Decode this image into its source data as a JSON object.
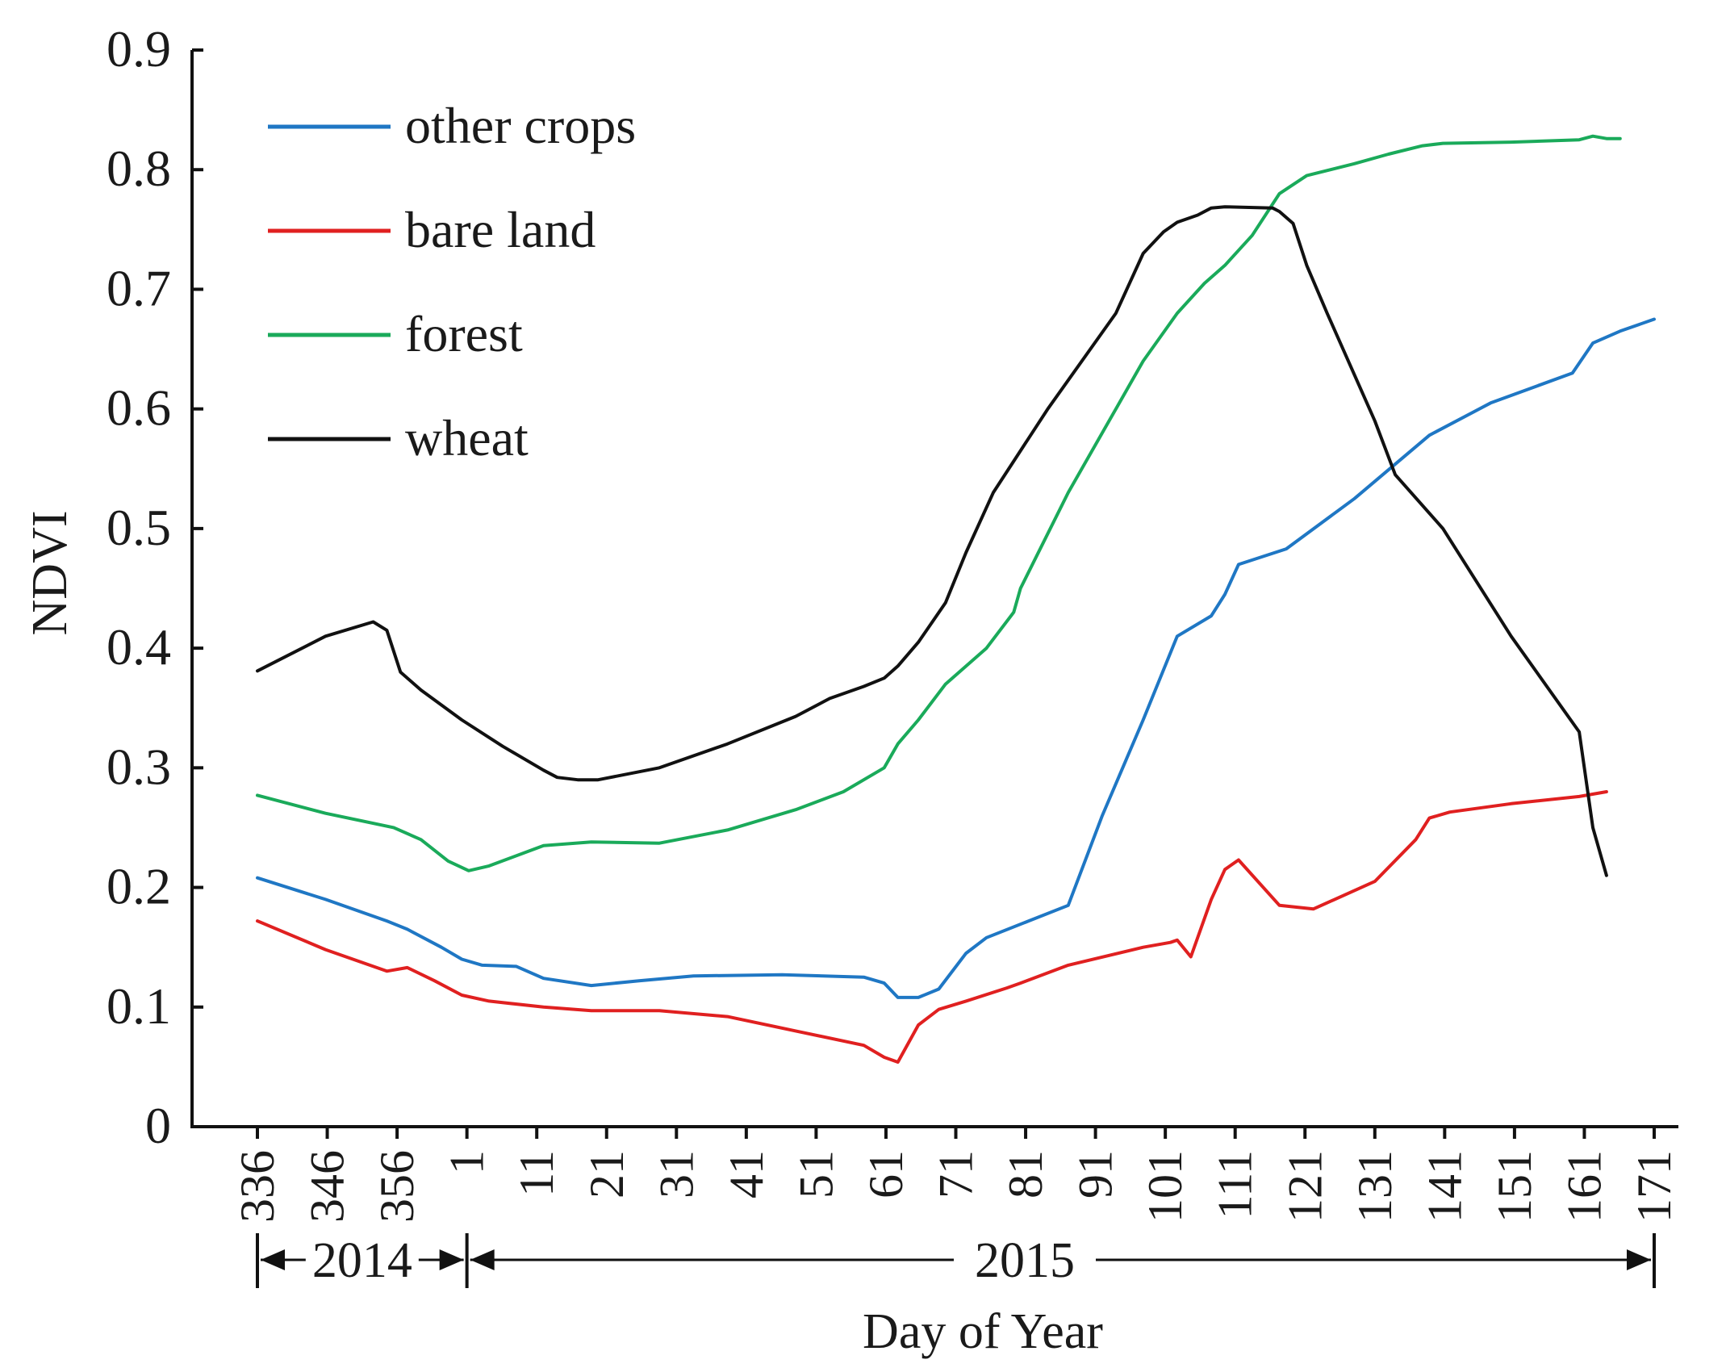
{
  "chart_data": {
    "type": "line",
    "title": "",
    "xlabel": "Day of Year",
    "ylabel": "NDVI",
    "x_tick_labels": [
      "336",
      "346",
      "356",
      "1",
      "11",
      "21",
      "31",
      "41",
      "51",
      "61",
      "71",
      "81",
      "91",
      "101",
      "111",
      "121",
      "131",
      "141",
      "151",
      "161",
      "171"
    ],
    "y_tick_labels": [
      "0",
      "0.1",
      "0.2",
      "0.3",
      "0.4",
      "0.5",
      "0.6",
      "0.7",
      "0.8",
      "0.9"
    ],
    "ylim": [
      0,
      0.9
    ],
    "xlim_sequential_days": [
      336,
      541
    ],
    "year_spans": [
      {
        "label": "2014",
        "from_tick": "336",
        "to_tick": "1"
      },
      {
        "label": "2015",
        "from_tick": "1",
        "to_tick": "171"
      }
    ],
    "legend_position": "top-left",
    "grid": false,
    "series": [
      {
        "name": "other crops",
        "color": "#1f77c4",
        "x": [
          336,
          346,
          355,
          358,
          363,
          366,
          369,
          374,
          378,
          385,
          392,
          400,
          413,
          425,
          428,
          430,
          433,
          436,
          440,
          443,
          455,
          460,
          466,
          471,
          476,
          478,
          480,
          487,
          497,
          508,
          517,
          529,
          532,
          536,
          541
        ],
        "y": [
          0.208,
          0.19,
          0.172,
          0.165,
          0.15,
          0.14,
          0.135,
          0.134,
          0.124,
          0.118,
          0.122,
          0.126,
          0.127,
          0.125,
          0.12,
          0.108,
          0.108,
          0.115,
          0.145,
          0.158,
          0.185,
          0.26,
          0.34,
          0.41,
          0.427,
          0.445,
          0.47,
          0.483,
          0.525,
          0.578,
          0.605,
          0.63,
          0.655,
          0.665,
          0.675
        ]
      },
      {
        "name": "bare land",
        "color": "#e02020",
        "x": [
          336,
          346,
          355,
          358,
          362,
          366,
          370,
          378,
          385,
          395,
          405,
          415,
          425,
          428,
          430,
          433,
          436,
          440,
          446,
          448,
          455,
          466,
          470,
          471,
          473,
          476,
          478,
          480,
          486,
          491,
          500,
          506,
          508,
          511,
          520,
          530,
          534
        ],
        "y": [
          0.172,
          0.148,
          0.13,
          0.133,
          0.122,
          0.11,
          0.105,
          0.1,
          0.097,
          0.097,
          0.092,
          0.08,
          0.068,
          0.058,
          0.054,
          0.085,
          0.098,
          0.105,
          0.116,
          0.12,
          0.135,
          0.15,
          0.154,
          0.156,
          0.142,
          0.19,
          0.215,
          0.223,
          0.185,
          0.182,
          0.205,
          0.24,
          0.258,
          0.263,
          0.27,
          0.276,
          0.28
        ]
      },
      {
        "name": "forest",
        "color": "#1aaa5a",
        "x": [
          336,
          346,
          356,
          360,
          364,
          367,
          370,
          378,
          385,
          395,
          405,
          415,
          422,
          428,
          430,
          433,
          437,
          443,
          447,
          448,
          455,
          462,
          466,
          471,
          475,
          478,
          482,
          486,
          490,
          497,
          502,
          507,
          510,
          520,
          530,
          532,
          534,
          536
        ],
        "y": [
          0.277,
          0.262,
          0.25,
          0.24,
          0.222,
          0.214,
          0.218,
          0.235,
          0.238,
          0.237,
          0.248,
          0.265,
          0.28,
          0.3,
          0.32,
          0.34,
          0.37,
          0.4,
          0.43,
          0.45,
          0.53,
          0.6,
          0.64,
          0.68,
          0.705,
          0.72,
          0.745,
          0.78,
          0.795,
          0.805,
          0.813,
          0.82,
          0.822,
          0.823,
          0.825,
          0.828,
          0.826,
          0.826
        ]
      },
      {
        "name": "wheat",
        "color": "#111111",
        "x": [
          336,
          346,
          353,
          355,
          357,
          360,
          366,
          372,
          378,
          380,
          383,
          386,
          395,
          405,
          415,
          420,
          425,
          428,
          430,
          433,
          437,
          440,
          444,
          448,
          452,
          462,
          466,
          469,
          471,
          474,
          476,
          478,
          485,
          486,
          488,
          490,
          493,
          500,
          503,
          510,
          520,
          530,
          532,
          534
        ],
        "y": [
          0.381,
          0.41,
          0.422,
          0.415,
          0.38,
          0.365,
          0.34,
          0.318,
          0.298,
          0.292,
          0.29,
          0.29,
          0.3,
          0.32,
          0.343,
          0.358,
          0.368,
          0.375,
          0.385,
          0.405,
          0.438,
          0.48,
          0.53,
          0.565,
          0.6,
          0.68,
          0.73,
          0.748,
          0.756,
          0.762,
          0.768,
          0.769,
          0.768,
          0.765,
          0.755,
          0.72,
          0.68,
          0.59,
          0.545,
          0.5,
          0.41,
          0.33,
          0.25,
          0.21
        ]
      }
    ]
  }
}
